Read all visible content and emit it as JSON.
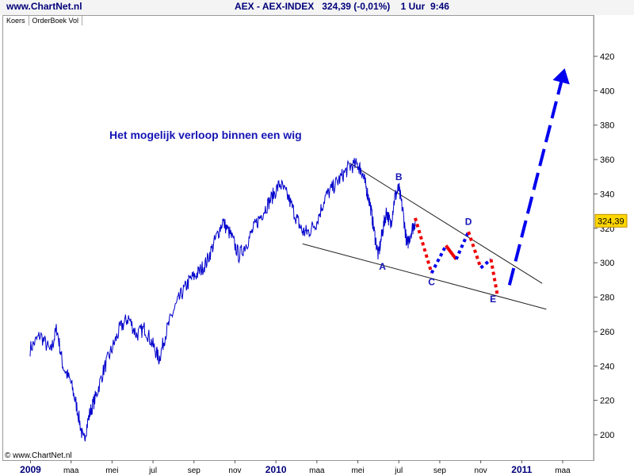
{
  "header": {
    "site": "www.ChartNet.nl",
    "title": "AEX - AEX-INDEX   324,39 (-0,01%)    1 Uur  9:46"
  },
  "tabs": [
    "Koers",
    "OrderBoek Vol"
  ],
  "copyright": "© www.ChartNet.nl",
  "chart_data": {
    "type": "line",
    "title": "Het mogelijk verloop binnen een wig",
    "price_box": "324,39",
    "y_ticks": [
      200,
      220,
      240,
      260,
      280,
      300,
      320,
      340,
      360,
      380,
      400,
      420
    ],
    "ylim": [
      190,
      435
    ],
    "x_ticks": [
      {
        "label": "2009",
        "t": 0.02,
        "bold": true
      },
      {
        "label": "maa",
        "t": 2.0
      },
      {
        "label": "mei",
        "t": 4.0
      },
      {
        "label": "jul",
        "t": 6.0
      },
      {
        "label": "sep",
        "t": 8.0
      },
      {
        "label": "nov",
        "t": 10.0
      },
      {
        "label": "2010",
        "t": 12.0,
        "bold": true
      },
      {
        "label": "maa",
        "t": 14.0
      },
      {
        "label": "mei",
        "t": 16.0
      },
      {
        "label": "jul",
        "t": 18.0
      },
      {
        "label": "sep",
        "t": 20.0
      },
      {
        "label": "nov",
        "t": 22.0
      },
      {
        "label": "2011",
        "t": 24.0,
        "bold": true
      },
      {
        "label": "maa",
        "t": 26.0
      }
    ],
    "xlim": [
      0,
      27.0
    ],
    "price_series": {
      "name": "AEX",
      "color": "#0000cc",
      "points": [
        [
          0.0,
          250
        ],
        [
          0.5,
          258
        ],
        [
          1.0,
          248
        ],
        [
          1.3,
          262
        ],
        [
          1.6,
          240
        ],
        [
          2.0,
          230
        ],
        [
          2.3,
          215
        ],
        [
          2.6,
          196
        ],
        [
          2.9,
          212
        ],
        [
          3.2,
          222
        ],
        [
          3.6,
          238
        ],
        [
          4.0,
          250
        ],
        [
          4.4,
          262
        ],
        [
          4.8,
          268
        ],
        [
          5.2,
          258
        ],
        [
          5.6,
          262
        ],
        [
          6.0,
          252
        ],
        [
          6.3,
          244
        ],
        [
          6.6,
          258
        ],
        [
          7.0,
          272
        ],
        [
          7.4,
          282
        ],
        [
          7.8,
          290
        ],
        [
          8.2,
          294
        ],
        [
          8.6,
          300
        ],
        [
          9.0,
          312
        ],
        [
          9.4,
          324
        ],
        [
          9.8,
          316
        ],
        [
          10.2,
          304
        ],
        [
          10.6,
          312
        ],
        [
          11.0,
          322
        ],
        [
          11.4,
          330
        ],
        [
          11.8,
          338
        ],
        [
          12.2,
          346
        ],
        [
          12.6,
          338
        ],
        [
          13.0,
          326
        ],
        [
          13.3,
          318
        ],
        [
          13.6,
          318
        ],
        [
          14.0,
          324
        ],
        [
          14.4,
          338
        ],
        [
          14.8,
          344
        ],
        [
          15.2,
          350
        ],
        [
          15.6,
          356
        ],
        [
          16.0,
          357
        ],
        [
          16.2,
          353
        ],
        [
          16.4,
          344
        ],
        [
          16.6,
          334
        ],
        [
          16.8,
          318
        ],
        [
          17.0,
          304
        ],
        [
          17.2,
          318
        ],
        [
          17.4,
          330
        ],
        [
          17.6,
          322
        ],
        [
          17.8,
          338
        ],
        [
          18.0,
          343
        ],
        [
          18.2,
          330
        ],
        [
          18.4,
          310
        ],
        [
          18.6,
          318
        ],
        [
          18.8,
          324
        ]
      ]
    },
    "wedge_lines": [
      {
        "from": [
          15.6,
          358
        ],
        "to": [
          25.0,
          288
        ]
      },
      {
        "from": [
          13.3,
          311
        ],
        "to": [
          25.2,
          273
        ]
      }
    ],
    "wave_segments": [
      {
        "color": "#ee0000",
        "style": "dotted",
        "from": [
          18.8,
          326
        ],
        "to": [
          19.6,
          294
        ]
      },
      {
        "color": "#0000ee",
        "style": "dotted",
        "from": [
          19.6,
          294
        ],
        "to": [
          20.3,
          310
        ]
      },
      {
        "color": "#ee0000",
        "style": "solid",
        "from": [
          20.3,
          310
        ],
        "to": [
          20.8,
          302
        ]
      },
      {
        "color": "#0000ee",
        "style": "dotted",
        "from": [
          20.8,
          302
        ],
        "to": [
          21.4,
          318
        ]
      },
      {
        "color": "#ee0000",
        "style": "dotted",
        "from": [
          21.4,
          318
        ],
        "to": [
          22.0,
          297
        ]
      },
      {
        "color": "#0000ee",
        "style": "dotted",
        "from": [
          22.0,
          297
        ],
        "to": [
          22.5,
          302
        ]
      },
      {
        "color": "#ee0000",
        "style": "dotted",
        "from": [
          22.5,
          302
        ],
        "to": [
          22.8,
          282
        ]
      }
    ],
    "breakout_arrow": {
      "color": "#0000ee",
      "from": [
        23.4,
        287
      ],
      "to": [
        26.1,
        413
      ]
    },
    "wave_labels": [
      {
        "label": "A",
        "t": 17.2,
        "y": 296
      },
      {
        "label": "B",
        "t": 18.0,
        "y": 348
      },
      {
        "label": "C",
        "t": 19.6,
        "y": 287
      },
      {
        "label": "D",
        "t": 21.4,
        "y": 322
      },
      {
        "label": "E",
        "t": 22.6,
        "y": 277
      }
    ]
  }
}
